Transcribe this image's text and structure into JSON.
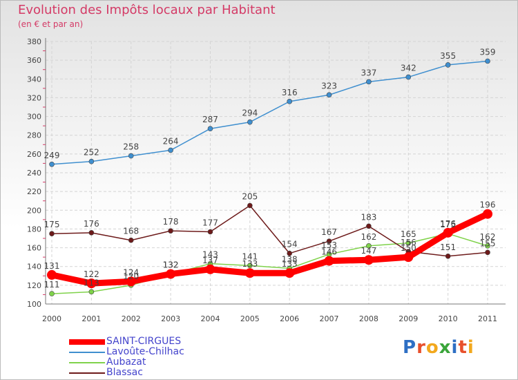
{
  "title": "Evolution des Impôts locaux par Habitant",
  "subtitle": "(en € et par an)",
  "brand": "Proxiti",
  "chart_data": {
    "type": "line",
    "title": "Evolution des Impôts locaux par Habitant",
    "ylabel": "(en € et par an)",
    "xlabel": "",
    "ylim": [
      100,
      380
    ],
    "yticks": [
      100,
      120,
      140,
      160,
      180,
      200,
      220,
      240,
      260,
      280,
      300,
      320,
      340,
      360,
      380
    ],
    "x": [
      "2000",
      "2001",
      "2002",
      "2003",
      "2004",
      "2005",
      "2006",
      "2007",
      "2008",
      "2009",
      "2010",
      "2011"
    ],
    "series": [
      {
        "name": "SAINT-CIRGUES",
        "color": "#ff0000",
        "values": [
          131,
          122,
          124,
          132,
          137,
          133,
          133,
          146,
          147,
          150,
          176,
          196
        ]
      },
      {
        "name": "Lavoûte-Chilhac",
        "color": "#3f8fcf",
        "values": [
          249,
          252,
          258,
          264,
          287,
          294,
          316,
          323,
          337,
          342,
          355,
          359
        ]
      },
      {
        "name": "Aubazat",
        "color": "#7fd24a",
        "values": [
          111,
          113,
          120,
          132,
          143,
          141,
          138,
          153,
          162,
          165,
          175,
          162
        ]
      },
      {
        "name": "Blassac",
        "color": "#6d1a1a",
        "values": [
          175,
          176,
          168,
          178,
          177,
          205,
          154,
          167,
          183,
          156,
          151,
          155
        ]
      }
    ]
  }
}
